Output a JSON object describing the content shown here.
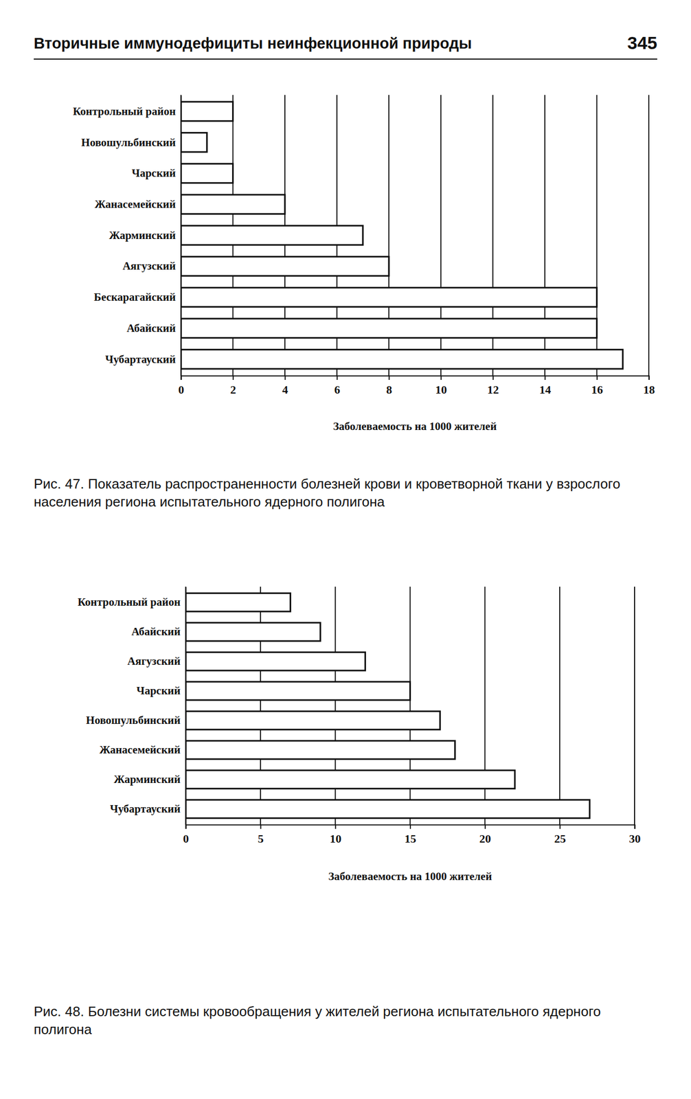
{
  "page": {
    "header": "Вторичные иммунодефициты неинфекционной природы",
    "number": 345
  },
  "chart_data": [
    {
      "type": "bar",
      "orientation": "horizontal",
      "title": "Рис. 47. Показатель распространенности болезней крови и кроветворной ткани у взрослого населения региона испытательного ядерного полигона",
      "categories": [
        "Контрольный район",
        "Новошульбинский",
        "Чарский",
        "Жанасемейский",
        "Жарминский",
        "Аягузский",
        "Бескарагайский",
        "Абайский",
        "Чубартауский"
      ],
      "values": [
        2,
        1,
        2,
        4,
        7,
        8,
        16,
        16,
        17
      ],
      "color": "#ffffff",
      "xlabel": "Заболеваемость на 1000 жителей",
      "xlim": [
        0,
        18
      ],
      "xticks": [
        0,
        2,
        4,
        6,
        8,
        10,
        12,
        14,
        16,
        18
      ],
      "grid": true
    },
    {
      "type": "bar",
      "orientation": "horizontal",
      "title": "Рис. 48. Болезни системы кровообращения у жителей региона испытательного ядерного полигона",
      "categories": [
        "Контрольный район",
        "Абайский",
        "Аягузский",
        "Чарский",
        "Новошульбинский",
        "Жанасемейский",
        "Жарминский",
        "Чубартауский"
      ],
      "values": [
        7,
        9,
        12,
        15,
        17,
        18,
        22,
        27
      ],
      "color": "#ffffff",
      "xlabel": "Заболеваемость на 1000 жителей",
      "xlim": [
        0,
        30
      ],
      "xticks": [
        0,
        5,
        10,
        15,
        20,
        25,
        30
      ],
      "grid": true
    }
  ]
}
